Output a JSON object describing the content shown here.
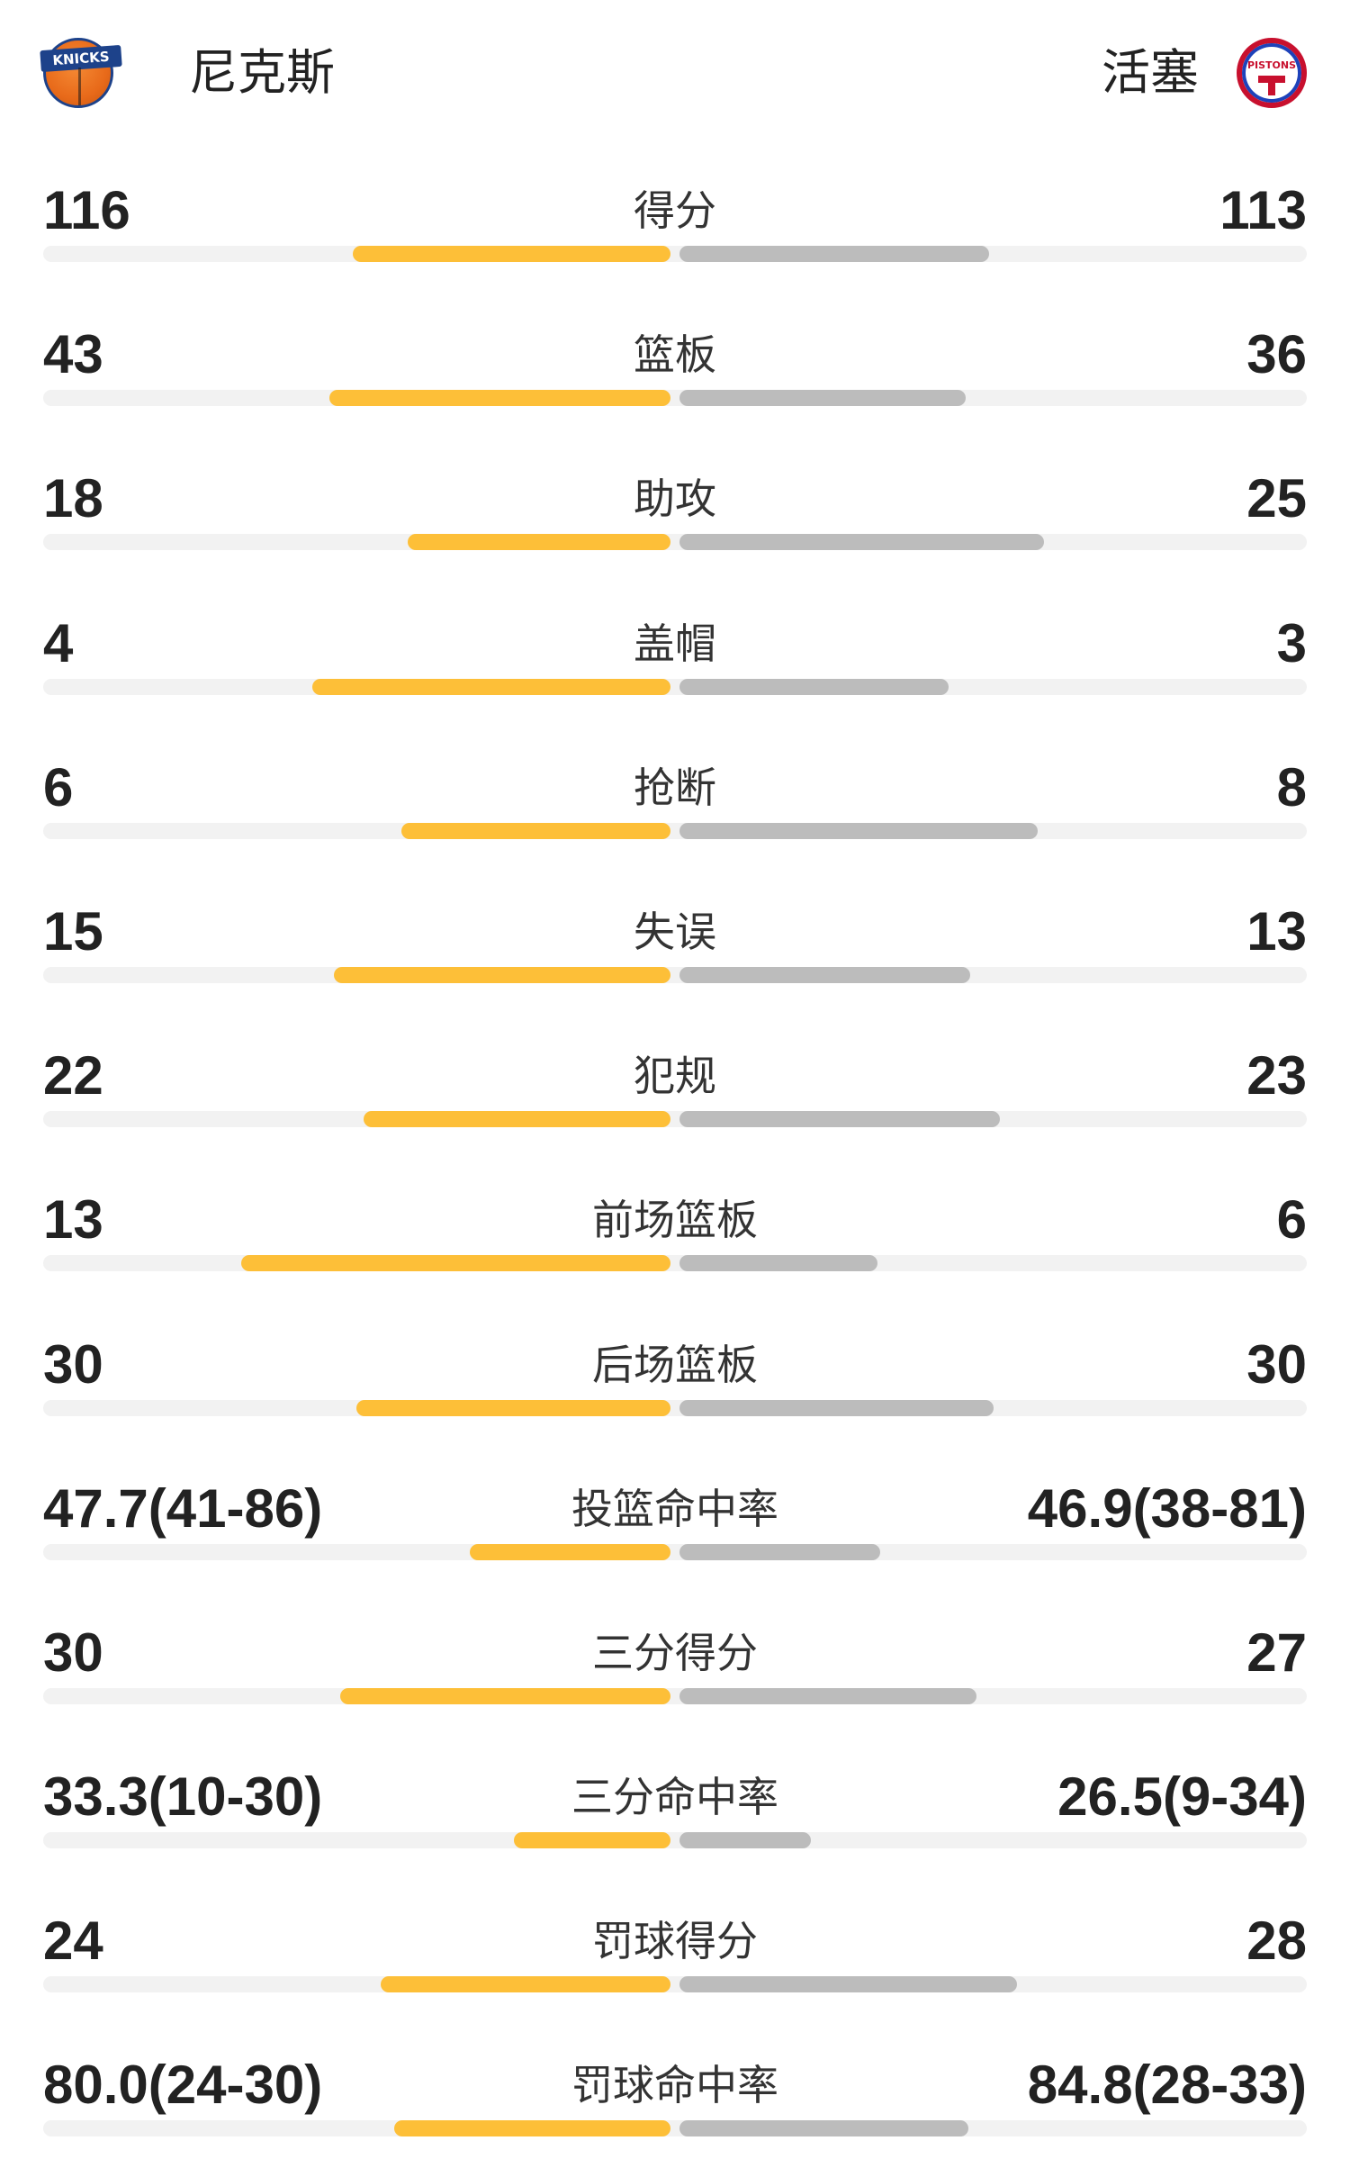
{
  "header": {
    "home_team": "尼克斯",
    "away_team": "活塞",
    "home_logo_text": "KNICKS",
    "away_logo_text": "PISTONS",
    "home_color": "#fdbf38",
    "away_color": "#bcbcbc"
  },
  "stats": [
    {
      "label": "得分",
      "home": "116",
      "away": "113",
      "home_fill": 0.506,
      "away_fill": 0.494
    },
    {
      "label": "篮板",
      "home": "43",
      "away": "36",
      "home_fill": 0.544,
      "away_fill": 0.456
    },
    {
      "label": "助攻",
      "home": "18",
      "away": "25",
      "home_fill": 0.419,
      "away_fill": 0.581
    },
    {
      "label": "盖帽",
      "home": "4",
      "away": "3",
      "home_fill": 0.571,
      "away_fill": 0.429
    },
    {
      "label": "抢断",
      "home": "6",
      "away": "8",
      "home_fill": 0.429,
      "away_fill": 0.571
    },
    {
      "label": "失误",
      "home": "15",
      "away": "13",
      "home_fill": 0.536,
      "away_fill": 0.464
    },
    {
      "label": "犯规",
      "home": "22",
      "away": "23",
      "home_fill": 0.489,
      "away_fill": 0.511
    },
    {
      "label": "前场篮板",
      "home": "13",
      "away": "6",
      "home_fill": 0.684,
      "away_fill": 0.316
    },
    {
      "label": "后场篮板",
      "home": "30",
      "away": "30",
      "home_fill": 0.5,
      "away_fill": 0.5
    },
    {
      "label": "投篮命中率",
      "home": "47.7(41-86)",
      "away": "46.9(38-81)",
      "home_fill": 0.32,
      "away_fill": 0.32
    },
    {
      "label": "三分得分",
      "home": "30",
      "away": "27",
      "home_fill": 0.526,
      "away_fill": 0.474
    },
    {
      "label": "三分命中率",
      "home": "33.3(10-30)",
      "away": "26.5(9-34)",
      "home_fill": 0.25,
      "away_fill": 0.21
    },
    {
      "label": "罚球得分",
      "home": "24",
      "away": "28",
      "home_fill": 0.462,
      "away_fill": 0.538
    },
    {
      "label": "罚球命中率",
      "home": "80.0(24-30)",
      "away": "84.8(28-33)",
      "home_fill": 0.44,
      "away_fill": 0.46
    }
  ]
}
